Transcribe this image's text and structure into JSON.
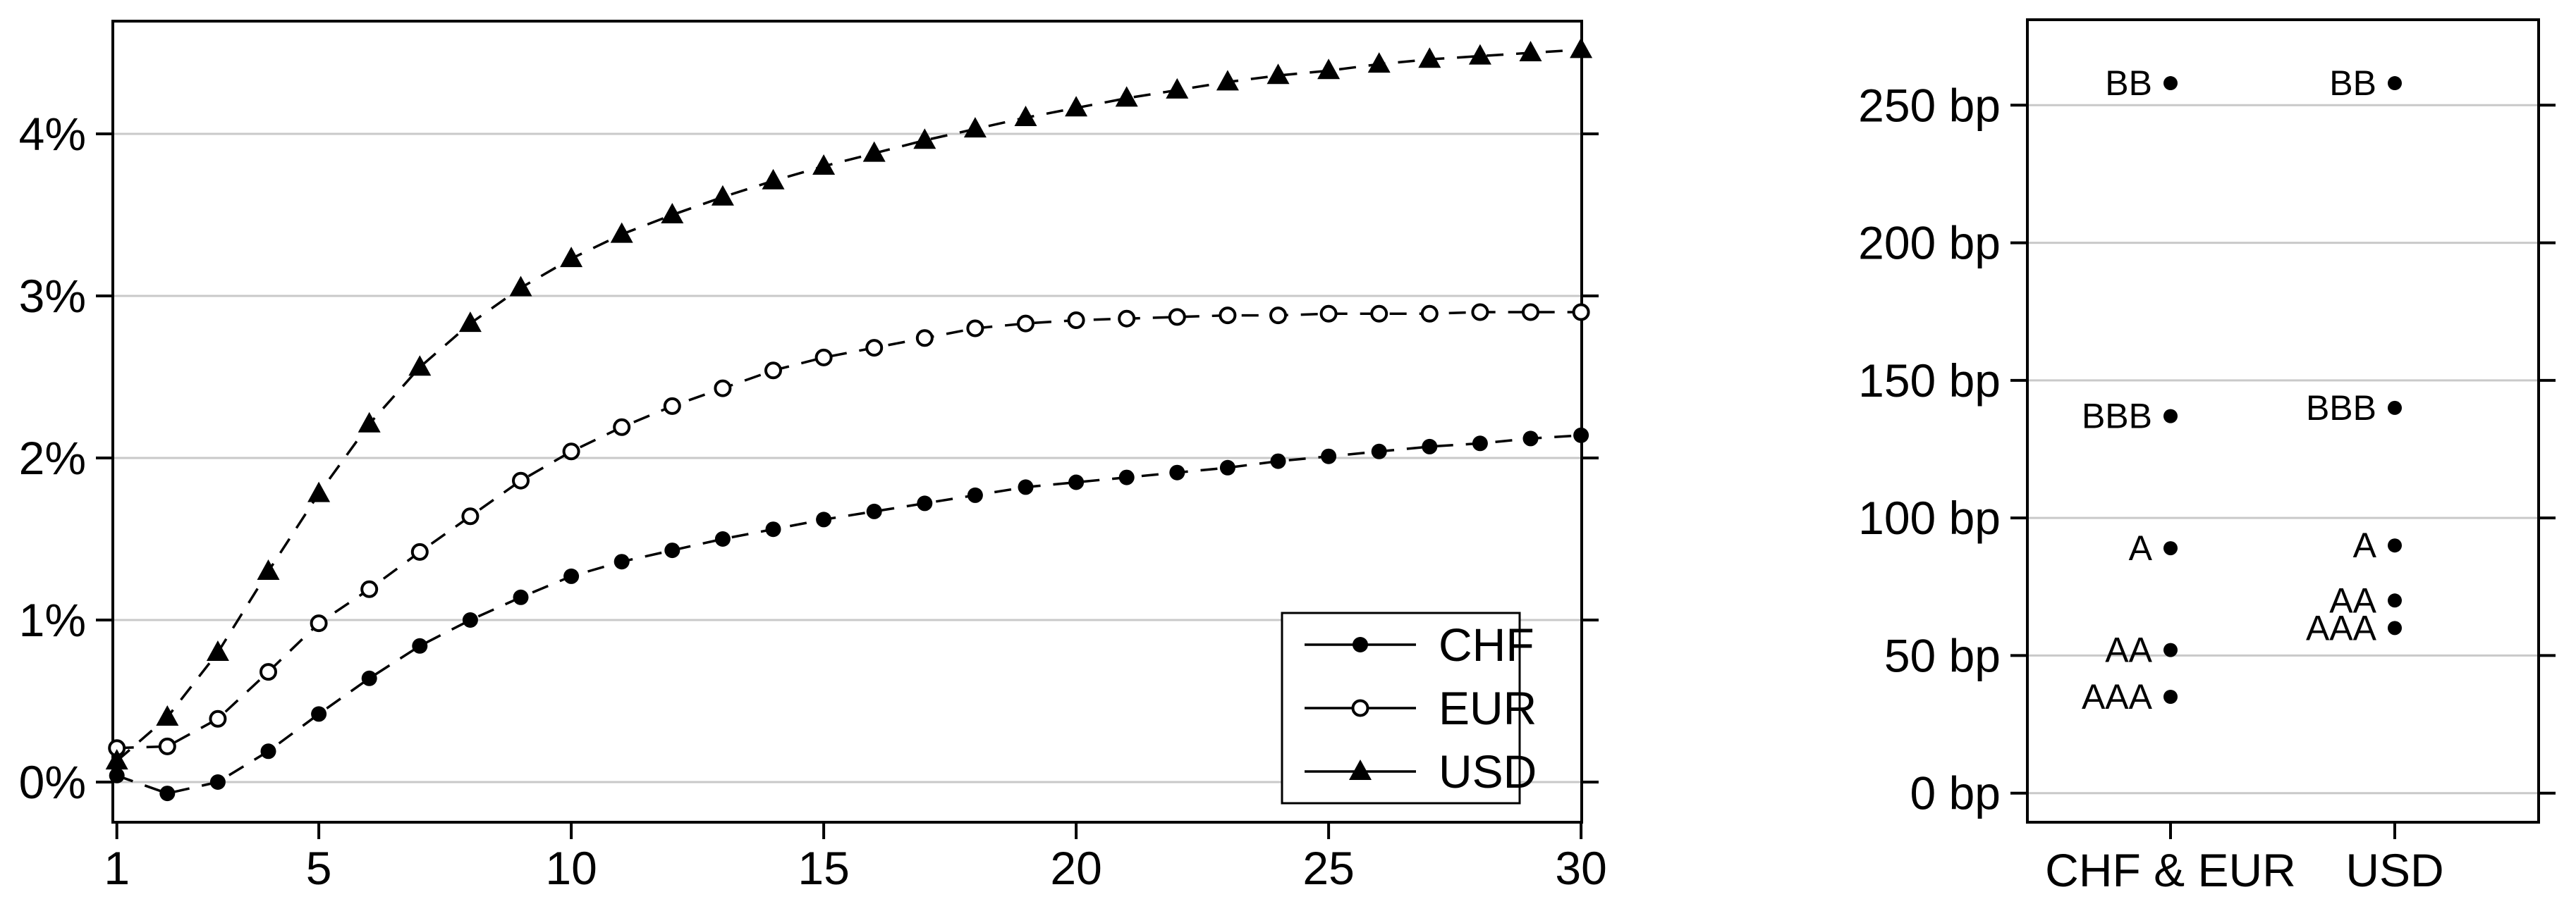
{
  "colors": {
    "foreground": "#000000",
    "gridline": "#c9c9c9",
    "background": "#ffffff"
  },
  "chart_data": [
    {
      "type": "line",
      "title": "",
      "xlabel": "",
      "ylabel": "",
      "x": [
        1,
        2,
        3,
        4,
        5,
        6,
        7,
        8,
        9,
        10,
        11,
        12,
        13,
        14,
        15,
        16,
        17,
        18,
        19,
        20,
        21,
        22,
        23,
        24,
        25,
        26,
        27,
        28,
        29,
        30
      ],
      "xticks": [
        "1",
        "5",
        "10",
        "15",
        "20",
        "25",
        "30"
      ],
      "xtick_values": [
        1,
        5,
        10,
        15,
        20,
        25,
        30
      ],
      "ytick_labels": [
        "0%",
        "1%",
        "2%",
        "3%",
        "4%"
      ],
      "ytick_values": [
        0,
        1,
        2,
        3,
        4
      ],
      "ylim": [
        -0.25,
        4.7
      ],
      "xlim": [
        1,
        30
      ],
      "grid": "horizontal",
      "line_style": "dashed",
      "legend_position": "bottom-right-inside",
      "series": [
        {
          "name": "CHF",
          "marker": "filled-circle",
          "values": [
            0.04,
            -0.07,
            0.0,
            0.19,
            0.42,
            0.64,
            0.84,
            1.0,
            1.14,
            1.27,
            1.36,
            1.43,
            1.5,
            1.56,
            1.62,
            1.67,
            1.72,
            1.77,
            1.82,
            1.85,
            1.88,
            1.91,
            1.94,
            1.98,
            2.01,
            2.04,
            2.07,
            2.09,
            2.12,
            2.14
          ]
        },
        {
          "name": "EUR",
          "marker": "open-circle",
          "values": [
            0.21,
            0.22,
            0.39,
            0.68,
            0.98,
            1.19,
            1.42,
            1.64,
            1.86,
            2.04,
            2.19,
            2.32,
            2.43,
            2.54,
            2.62,
            2.68,
            2.74,
            2.8,
            2.83,
            2.85,
            2.86,
            2.87,
            2.88,
            2.88,
            2.89,
            2.89,
            2.89,
            2.9,
            2.9,
            2.9
          ]
        },
        {
          "name": "USD",
          "marker": "filled-triangle",
          "values": [
            0.13,
            0.4,
            0.8,
            1.3,
            1.78,
            2.21,
            2.56,
            2.83,
            3.05,
            3.23,
            3.38,
            3.5,
            3.61,
            3.71,
            3.8,
            3.88,
            3.96,
            4.03,
            4.1,
            4.16,
            4.22,
            4.27,
            4.32,
            4.36,
            4.39,
            4.43,
            4.46,
            4.48,
            4.5,
            4.52
          ]
        }
      ]
    },
    {
      "type": "scatter",
      "title": "",
      "unit": "bp",
      "ytick_labels": [
        "0 bp",
        "50 bp",
        "100 bp",
        "150 bp",
        "200 bp",
        "250 bp"
      ],
      "ytick_values": [
        0,
        50,
        100,
        150,
        200,
        250
      ],
      "ylim": [
        -10,
        279
      ],
      "grid": "horizontal",
      "categories": [
        "CHF & EUR",
        "USD"
      ],
      "groups": [
        {
          "category": "CHF & EUR",
          "points": [
            {
              "rating": "AAA",
              "value": 35
            },
            {
              "rating": "AA",
              "value": 52
            },
            {
              "rating": "A",
              "value": 89
            },
            {
              "rating": "BBB",
              "value": 137
            },
            {
              "rating": "BB",
              "value": 258
            }
          ]
        },
        {
          "category": "USD",
          "points": [
            {
              "rating": "AAA",
              "value": 60
            },
            {
              "rating": "AA",
              "value": 70
            },
            {
              "rating": "A",
              "value": 90
            },
            {
              "rating": "BBB",
              "value": 140
            },
            {
              "rating": "BB",
              "value": 258
            }
          ]
        }
      ]
    }
  ]
}
